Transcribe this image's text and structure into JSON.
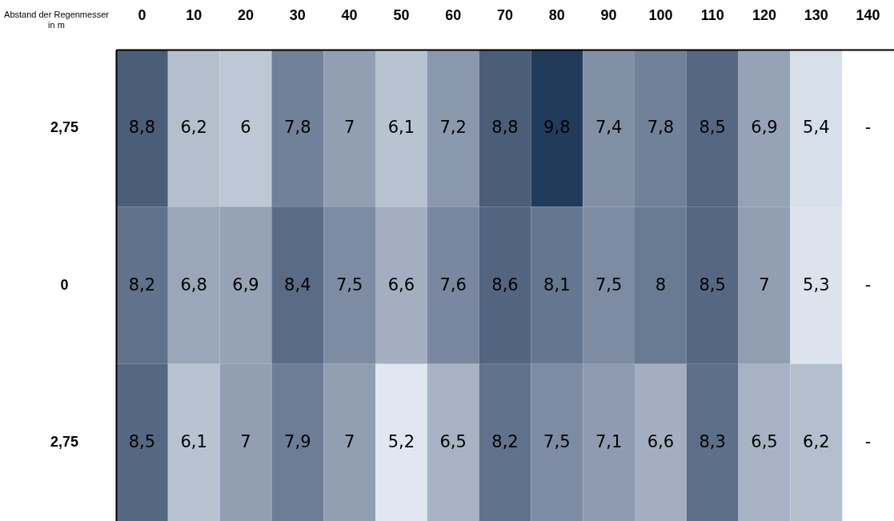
{
  "chart_data": {
    "type": "heatmap",
    "xlabel": "Abstand der Regenmesser in m",
    "categories": [
      "0",
      "10",
      "20",
      "30",
      "40",
      "50",
      "60",
      "70",
      "80",
      "90",
      "100",
      "110",
      "120",
      "130",
      "140"
    ],
    "y_categories": [
      "2,75",
      "0",
      "2,75"
    ],
    "cells": [
      [
        8.8,
        6.2,
        6,
        7.8,
        7,
        6.1,
        7.2,
        8.8,
        9.8,
        7.4,
        7.8,
        8.5,
        6.9,
        5.4,
        null
      ],
      [
        8.2,
        6.8,
        6.9,
        8.4,
        7.5,
        6.6,
        7.6,
        8.6,
        8.1,
        7.5,
        8,
        8.5,
        7,
        5.3,
        null
      ],
      [
        8.5,
        6.1,
        7,
        7.9,
        7,
        5.2,
        6.5,
        8.2,
        7.5,
        7.1,
        6.6,
        8.3,
        6.5,
        6.2,
        null
      ]
    ],
    "cell_labels": [
      [
        "8,8",
        "6,2",
        "6",
        "7,8",
        "7",
        "6,1",
        "7,2",
        "8,8",
        "9,8",
        "7,4",
        "7,8",
        "8,5",
        "6,9",
        "5,4",
        "-"
      ],
      [
        "8,2",
        "6,8",
        "6,9",
        "8,4",
        "7,5",
        "6,6",
        "7,6",
        "8,6",
        "8,1",
        "7,5",
        "8",
        "8,5",
        "7",
        "5,3",
        "-"
      ],
      [
        "8,5",
        "6,1",
        "7",
        "7,9",
        "7",
        "5,2",
        "6,5",
        "8,2",
        "7,5",
        "7,1",
        "6,6",
        "8,3",
        "6,5",
        "6,2",
        "-"
      ]
    ]
  }
}
